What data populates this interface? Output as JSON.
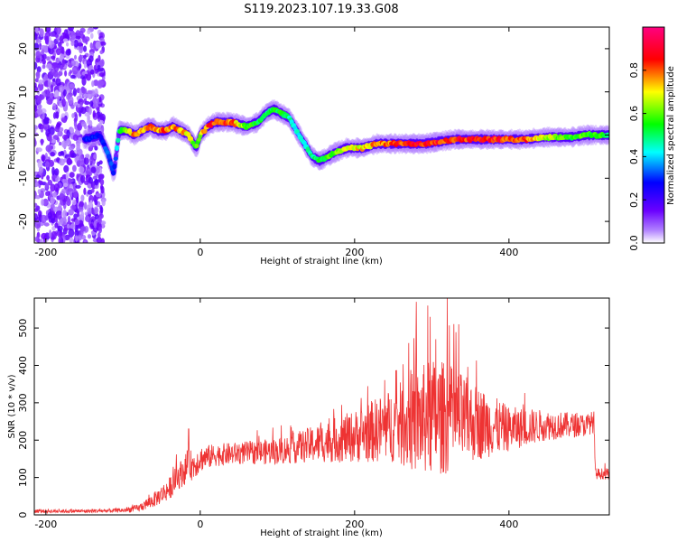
{
  "title": "S119.2023.107.19.33.G08",
  "colors": {
    "snr_line": "#ee3333",
    "spectrogram_background": "#ffffff",
    "frame": "#000000"
  },
  "colorbar": {
    "label": "Normalized spectral amplitude",
    "range": [
      0.0,
      1.0
    ],
    "ticks": [
      "0.0",
      "0.2",
      "0.4",
      "0.6",
      "0.8"
    ],
    "colormap": [
      "#ffffff",
      "#6a00ff",
      "#0000ff",
      "#00ffff",
      "#00ff00",
      "#ffff00",
      "#ff0000",
      "#ff0080"
    ]
  },
  "chart_data": [
    {
      "type": "heatmap",
      "title": "",
      "xlabel": "Height of straight line (km)",
      "ylabel": "Frequency (Hz)",
      "xlim": [
        -215,
        530
      ],
      "ylim": [
        -25,
        25
      ],
      "xticks": [
        "-200",
        "0",
        "200",
        "400"
      ],
      "yticks": [
        "-20",
        "-10",
        "0",
        "10",
        "20"
      ],
      "grid": false,
      "noise_region_x": [
        -215,
        -125
      ],
      "ridge": {
        "x": [
          -150,
          -130,
          -120,
          -112,
          -105,
          -95,
          -85,
          -75,
          -65,
          -55,
          -45,
          -35,
          -25,
          -15,
          -5,
          0,
          10,
          20,
          40,
          60,
          75,
          85,
          95,
          105,
          115,
          125,
          135,
          145,
          155,
          165,
          175,
          190,
          210,
          230,
          250,
          270,
          290,
          310,
          330,
          360,
          390,
          420,
          450,
          480,
          500,
          530
        ],
        "y": [
          -1,
          0,
          -4,
          -9,
          1,
          1,
          0,
          1,
          2,
          1,
          1,
          2,
          1,
          0,
          -3,
          0,
          2,
          3,
          3,
          2,
          3,
          5,
          6,
          5,
          4,
          1,
          -2,
          -5,
          -6,
          -5,
          -4,
          -3,
          -3,
          -2,
          -2,
          -2,
          -2,
          -1.5,
          -1,
          -1,
          -1,
          -1,
          -0.5,
          -0.5,
          0,
          0
        ],
        "amplitude": [
          0.3,
          0.3,
          0.35,
          0.3,
          0.5,
          0.7,
          0.8,
          0.75,
          0.85,
          0.8,
          0.85,
          0.8,
          0.8,
          0.75,
          0.6,
          0.7,
          0.85,
          0.9,
          0.85,
          0.6,
          0.55,
          0.5,
          0.55,
          0.55,
          0.5,
          0.45,
          0.45,
          0.5,
          0.55,
          0.6,
          0.65,
          0.7,
          0.75,
          0.8,
          0.85,
          0.9,
          0.9,
          0.9,
          0.9,
          0.9,
          0.9,
          0.85,
          0.7,
          0.6,
          0.6,
          0.55
        ]
      }
    },
    {
      "type": "line",
      "title": "",
      "xlabel": "Height of straight line (km)",
      "ylabel": "SNR (10 * v/v)",
      "xlim": [
        -215,
        530
      ],
      "ylim": [
        0,
        580
      ],
      "xticks": [
        "-200",
        "0",
        "200",
        "400"
      ],
      "yticks": [
        "0",
        "100",
        "200",
        "300",
        "400",
        "500"
      ],
      "grid": false,
      "series": [
        {
          "color": "#ee3333",
          "envelope_x": [
            -215,
            -150,
            -100,
            -80,
            -60,
            -40,
            -30,
            -20,
            -15,
            -10,
            0,
            20,
            50,
            100,
            150,
            200,
            250,
            280,
            300,
            320,
            350,
            400,
            450,
            500,
            510,
            512,
            530
          ],
          "envelope_mean": [
            10,
            10,
            12,
            18,
            40,
            70,
            100,
            120,
            140,
            130,
            150,
            160,
            165,
            170,
            190,
            210,
            240,
            250,
            260,
            260,
            250,
            230,
            240,
            240,
            250,
            110,
            110
          ],
          "envelope_spread": [
            5,
            5,
            6,
            10,
            20,
            30,
            35,
            40,
            40,
            40,
            35,
            30,
            30,
            35,
            50,
            70,
            100,
            140,
            160,
            150,
            110,
            60,
            40,
            30,
            30,
            15,
            15
          ],
          "spikes": [
            {
              "x": -15,
              "y": 230
            },
            {
              "x": 270,
              "y": 460
            },
            {
              "x": 280,
              "y": 570
            },
            {
              "x": 295,
              "y": 560
            },
            {
              "x": 305,
              "y": 470
            },
            {
              "x": 320,
              "y": 580
            },
            {
              "x": 335,
              "y": 510
            }
          ]
        }
      ]
    }
  ]
}
